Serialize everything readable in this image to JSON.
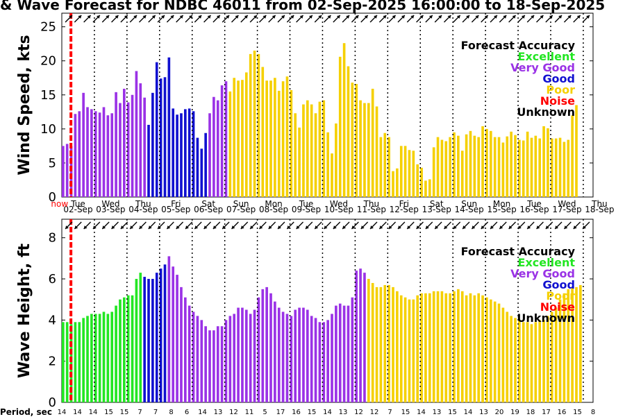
{
  "title": "& Wave Forecast for NDBC 46011 from 02-Sep-2025 16:00:00 to 18-Sep-2025",
  "period_label": "Period, sec",
  "now_label": "now",
  "accuracy_colors": {
    "Excellent": "#22e622",
    "Very Good": "#9a32e6",
    "Good": "#1010d0",
    "Poor": "#f5d000",
    "Noise": "#ff0000",
    "Unknown": "#000000"
  },
  "legend": {
    "title": "Forecast Accuracy",
    "items": [
      {
        "label": "Excellent",
        "color": "#22e622"
      },
      {
        "label": "Very Good",
        "color": "#9a32e6"
      },
      {
        "label": "Good",
        "color": "#1010d0"
      },
      {
        "label": "Poor",
        "color": "#f5d000"
      },
      {
        "label": "Noise",
        "color": "#ff0000"
      },
      {
        "label": "Unknown",
        "color": "#000000"
      }
    ]
  },
  "days": [
    {
      "day": "Tue",
      "date": "02-Sep"
    },
    {
      "day": "Wed",
      "date": "03-Sep"
    },
    {
      "day": "Thu",
      "date": "04-Sep"
    },
    {
      "day": "Fri",
      "date": "05-Sep"
    },
    {
      "day": "Sat",
      "date": "06-Sep"
    },
    {
      "day": "Sun",
      "date": "07-Sep"
    },
    {
      "day": "Mon",
      "date": "08-Sep"
    },
    {
      "day": "Tue",
      "date": "09-Sep"
    },
    {
      "day": "Wed",
      "date": "10-Sep"
    },
    {
      "day": "Thu",
      "date": "11-Sep"
    },
    {
      "day": "Fri",
      "date": "12-Sep"
    },
    {
      "day": "Sat",
      "date": "13-Sep"
    },
    {
      "day": "Sun",
      "date": "14-Sep"
    },
    {
      "day": "Mon",
      "date": "15-Sep"
    },
    {
      "day": "Tue",
      "date": "16-Sep"
    },
    {
      "day": "Wed",
      "date": "17-Sep"
    },
    {
      "day": "Thu",
      "date": "18-Sep"
    }
  ],
  "periods": [
    "14",
    "14",
    "14",
    "15",
    "15",
    "7",
    "7",
    "8",
    "6",
    "14",
    "13",
    "12",
    "11",
    "5",
    "17",
    "16",
    "15",
    "14",
    "13",
    "12",
    "12",
    "7",
    "15",
    "14",
    "13",
    "15",
    "14",
    "13",
    "20",
    "19",
    "18",
    "17",
    "16",
    "15",
    "8"
  ],
  "chart_data": [
    {
      "type": "bar",
      "ylabel": "Wind Speed, kts",
      "ylim": [
        0,
        27
      ],
      "yticks": [
        0,
        5,
        10,
        15,
        20,
        25
      ],
      "x_start_day": 2.0,
      "bar_step_days": 0.125,
      "now_day": 2.28,
      "values": [
        7.5,
        7.8,
        7.5,
        12.2,
        12.6,
        15.3,
        13.2,
        12.9,
        12.6,
        12.4,
        13.2,
        12,
        12.3,
        15.4,
        13.8,
        15.9,
        13.9,
        15,
        18.5,
        16.7,
        14.6,
        10.6,
        15.3,
        19.8,
        17.4,
        17.6,
        20.5,
        13,
        12.1,
        12.3,
        12.9,
        13,
        12.6,
        8.7,
        7.1,
        9.4,
        12.3,
        14.7,
        14.2,
        16.4,
        17,
        15.5,
        17.5,
        17.1,
        17.2,
        18.3,
        21,
        21.5,
        21,
        19.1,
        17.1,
        17.1,
        17.5,
        15.6,
        17,
        17.7,
        15.7,
        12.3,
        10.2,
        13.6,
        14.2,
        13.6,
        12.3,
        14,
        14.2,
        9.5,
        6.4,
        10.8,
        20.6,
        22.6,
        19.2,
        16.8,
        16.6,
        14.2,
        13.8,
        13.8,
        15.9,
        13.3,
        8.8,
        9.4,
        8.8,
        3.8,
        4.2,
        7.5,
        7.5,
        6.9,
        6.8,
        4.8,
        4.3,
        2.4,
        2.6,
        7.3,
        8.8,
        8.4,
        8.2,
        8.8,
        9.5,
        9,
        6.8,
        9.2,
        9.7,
        9,
        8.8,
        10.4,
        10,
        9.7,
        8.8,
        8.8,
        8,
        8.9,
        9.6,
        9.1,
        8.4,
        8.3,
        9.6,
        8.7,
        9,
        8.6,
        10.4,
        10.1,
        8.6,
        8.6,
        8.7,
        8.1,
        8.4,
        12,
        13.5
      ],
      "accuracy_runs": [
        {
          "from": 0,
          "to": 2,
          "accuracy": "Very Good"
        },
        {
          "from": 3,
          "to": 20,
          "accuracy": "Very Good"
        },
        {
          "from": 21,
          "to": 26,
          "accuracy": "Good"
        },
        {
          "from": 27,
          "to": 35,
          "accuracy": "Good"
        },
        {
          "from": 36,
          "to": 40,
          "accuracy": "Very Good"
        },
        {
          "from": 41,
          "to": 127,
          "accuracy": "Poor"
        }
      ],
      "direction_arrows_deg": [
        315,
        315,
        315,
        315,
        315,
        315,
        315,
        315,
        315,
        315,
        315,
        315,
        315,
        315,
        315,
        315,
        315,
        315,
        315,
        315,
        315,
        315,
        315,
        315,
        315,
        315,
        315,
        315,
        315,
        315,
        315,
        315,
        315,
        315,
        315,
        315,
        315,
        315,
        315,
        315,
        315,
        315,
        315,
        315,
        315,
        315,
        315,
        315,
        315,
        315,
        315,
        315,
        315,
        315,
        315,
        315,
        315
      ]
    },
    {
      "type": "bar",
      "ylabel": "Wave Height, ft",
      "ylim": [
        0,
        8.9
      ],
      "yticks": [
        0,
        2,
        4,
        6,
        8
      ],
      "x_start_day": 2.0,
      "bar_step_days": 0.125,
      "now_day": 2.28,
      "values": [
        3.9,
        3.9,
        3.8,
        3.9,
        3.9,
        4.1,
        4.2,
        4.3,
        4.3,
        4.3,
        4.4,
        4.3,
        4.4,
        4.7,
        5.0,
        5.1,
        5.2,
        5.2,
        6.0,
        6.3,
        6.1,
        6.0,
        6.0,
        6.3,
        6.5,
        6.7,
        7.1,
        6.6,
        6.2,
        5.6,
        5.1,
        4.7,
        4.4,
        4.2,
        4.0,
        3.7,
        3.5,
        3.5,
        3.7,
        3.7,
        4.0,
        4.2,
        4.3,
        4.6,
        4.6,
        4.5,
        4.3,
        4.5,
        5.1,
        5.5,
        5.6,
        5.3,
        4.9,
        4.6,
        4.4,
        4.3,
        4.2,
        4.5,
        4.6,
        4.6,
        4.5,
        4.2,
        4.1,
        3.9,
        3.9,
        4.0,
        4.3,
        4.7,
        4.8,
        4.7,
        4.7,
        5.1,
        6.4,
        6.5,
        6.3,
        6.0,
        5.8,
        5.6,
        5.6,
        5.7,
        5.7,
        5.6,
        5.4,
        5.2,
        5.1,
        5.0,
        5.0,
        5.2,
        5.3,
        5.3,
        5.3,
        5.4,
        5.4,
        5.4,
        5.3,
        5.3,
        5.4,
        5.5,
        5.4,
        5.2,
        5.3,
        5.2,
        5.3,
        5.2,
        5.1,
        5.0,
        4.9,
        4.8,
        4.6,
        4.4,
        4.2,
        4.1,
        4.0,
        3.9,
        3.9,
        3.8,
        3.9,
        4.0,
        4.0,
        4.2,
        4.4,
        4.6,
        5.0,
        5.3,
        5.5,
        5.6,
        5.6,
        5.7
      ],
      "accuracy_runs": [
        {
          "from": 0,
          "to": 19,
          "accuracy": "Excellent"
        },
        {
          "from": 20,
          "to": 25,
          "accuracy": "Good"
        },
        {
          "from": 26,
          "to": 74,
          "accuracy": "Very Good"
        },
        {
          "from": 75,
          "to": 79,
          "accuracy": "Poor"
        },
        {
          "from": 80,
          "to": 127,
          "accuracy": "Poor"
        }
      ],
      "direction_arrows_deg": [
        135,
        135,
        135,
        135,
        135,
        135,
        135,
        135,
        135,
        135,
        135,
        135,
        135,
        135,
        135,
        135,
        135,
        135,
        135,
        135,
        135,
        135,
        135,
        135,
        135,
        135,
        135,
        135,
        135,
        135,
        135,
        135,
        135,
        135,
        135,
        135,
        135,
        135,
        135,
        135,
        135,
        135,
        135,
        135,
        135,
        135,
        135,
        135,
        135,
        135,
        135,
        135,
        135,
        135,
        135,
        135,
        135
      ]
    }
  ]
}
